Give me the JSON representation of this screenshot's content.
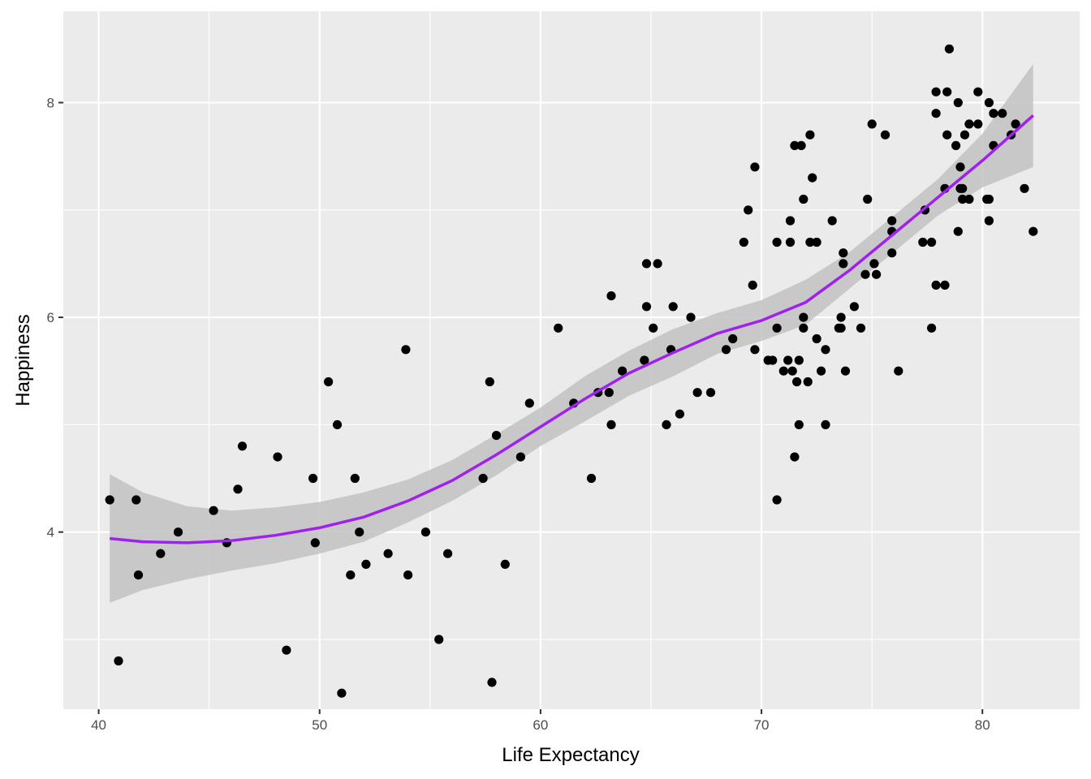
{
  "chart_data": {
    "type": "scatter",
    "title": "",
    "xlabel": "Life Expectancy",
    "ylabel": "Happiness",
    "xlim": [
      38.4,
      84.4
    ],
    "ylim": [
      2.35,
      8.85
    ],
    "x_ticks": [
      40,
      50,
      60,
      70,
      80
    ],
    "y_ticks": [
      4,
      6,
      8
    ],
    "grid": true,
    "legend": "none",
    "colors": {
      "panel_background": "#ebebeb",
      "grid": "#ffffff",
      "points": "#000000",
      "smooth_line": "#a020f0",
      "confidence_band": "#c2c2c2"
    },
    "points": [
      [
        40.5,
        4.3
      ],
      [
        40.9,
        2.8
      ],
      [
        41.7,
        4.3
      ],
      [
        41.8,
        3.6
      ],
      [
        42.8,
        3.8
      ],
      [
        43.6,
        4.0
      ],
      [
        45.2,
        4.2
      ],
      [
        45.8,
        3.9
      ],
      [
        46.3,
        4.4
      ],
      [
        46.5,
        4.8
      ],
      [
        48.1,
        4.7
      ],
      [
        48.5,
        2.9
      ],
      [
        49.7,
        4.5
      ],
      [
        49.8,
        3.9
      ],
      [
        50.4,
        5.4
      ],
      [
        50.8,
        5.0
      ],
      [
        51.0,
        2.5
      ],
      [
        51.4,
        3.6
      ],
      [
        51.6,
        4.5
      ],
      [
        51.8,
        4.0
      ],
      [
        52.1,
        3.7
      ],
      [
        53.1,
        3.8
      ],
      [
        53.9,
        5.7
      ],
      [
        54.0,
        3.6
      ],
      [
        54.8,
        4.0
      ],
      [
        55.4,
        3.0
      ],
      [
        55.8,
        3.8
      ],
      [
        57.4,
        4.5
      ],
      [
        57.7,
        5.4
      ],
      [
        57.8,
        2.6
      ],
      [
        58.0,
        4.9
      ],
      [
        58.4,
        3.7
      ],
      [
        59.1,
        4.7
      ],
      [
        59.5,
        5.2
      ],
      [
        60.8,
        5.9
      ],
      [
        61.5,
        5.2
      ],
      [
        62.3,
        4.5
      ],
      [
        62.6,
        5.3
      ],
      [
        63.1,
        5.3
      ],
      [
        63.2,
        5.0
      ],
      [
        63.2,
        6.2
      ],
      [
        63.7,
        5.5
      ],
      [
        64.7,
        5.6
      ],
      [
        64.8,
        6.1
      ],
      [
        64.8,
        6.5
      ],
      [
        65.1,
        5.9
      ],
      [
        65.3,
        6.5
      ],
      [
        65.7,
        5.0
      ],
      [
        65.9,
        5.7
      ],
      [
        66.0,
        6.1
      ],
      [
        66.3,
        5.1
      ],
      [
        66.8,
        6.0
      ],
      [
        67.1,
        5.3
      ],
      [
        67.7,
        5.3
      ],
      [
        68.4,
        5.7
      ],
      [
        68.7,
        5.8
      ],
      [
        69.2,
        6.7
      ],
      [
        69.4,
        7.0
      ],
      [
        69.6,
        6.3
      ],
      [
        69.7,
        5.7
      ],
      [
        69.7,
        7.4
      ],
      [
        70.3,
        5.6
      ],
      [
        70.5,
        5.6
      ],
      [
        70.7,
        4.3
      ],
      [
        70.7,
        5.9
      ],
      [
        70.7,
        6.7
      ],
      [
        71.0,
        5.5
      ],
      [
        71.2,
        5.6
      ],
      [
        71.3,
        6.7
      ],
      [
        71.3,
        6.9
      ],
      [
        71.4,
        5.5
      ],
      [
        71.5,
        4.7
      ],
      [
        71.5,
        7.6
      ],
      [
        71.6,
        5.4
      ],
      [
        71.7,
        5.0
      ],
      [
        71.7,
        5.6
      ],
      [
        71.8,
        7.6
      ],
      [
        71.9,
        5.9
      ],
      [
        71.9,
        6.0
      ],
      [
        71.9,
        7.1
      ],
      [
        72.1,
        5.4
      ],
      [
        72.2,
        6.7
      ],
      [
        72.2,
        7.7
      ],
      [
        72.3,
        7.3
      ],
      [
        72.5,
        5.8
      ],
      [
        72.5,
        6.7
      ],
      [
        72.7,
        5.5
      ],
      [
        72.9,
        5.0
      ],
      [
        72.9,
        5.7
      ],
      [
        73.2,
        6.9
      ],
      [
        73.5,
        5.9
      ],
      [
        73.6,
        5.9
      ],
      [
        73.6,
        6.0
      ],
      [
        73.7,
        6.5
      ],
      [
        73.7,
        6.6
      ],
      [
        73.8,
        5.5
      ],
      [
        74.2,
        6.1
      ],
      [
        74.5,
        5.9
      ],
      [
        74.7,
        6.4
      ],
      [
        74.8,
        7.1
      ],
      [
        75.0,
        7.8
      ],
      [
        75.1,
        6.5
      ],
      [
        75.2,
        6.4
      ],
      [
        75.6,
        7.7
      ],
      [
        75.9,
        6.6
      ],
      [
        75.9,
        6.8
      ],
      [
        75.9,
        6.9
      ],
      [
        76.2,
        5.5
      ],
      [
        77.3,
        6.7
      ],
      [
        77.4,
        7.0
      ],
      [
        77.7,
        5.9
      ],
      [
        77.7,
        6.7
      ],
      [
        77.9,
        6.3
      ],
      [
        77.9,
        7.9
      ],
      [
        77.9,
        8.1
      ],
      [
        78.3,
        6.3
      ],
      [
        78.3,
        7.2
      ],
      [
        78.4,
        7.7
      ],
      [
        78.4,
        8.1
      ],
      [
        78.5,
        8.5
      ],
      [
        78.8,
        7.6
      ],
      [
        78.9,
        6.8
      ],
      [
        78.9,
        8.0
      ],
      [
        79.0,
        7.2
      ],
      [
        79.0,
        7.4
      ],
      [
        79.1,
        7.1
      ],
      [
        79.1,
        7.2
      ],
      [
        79.2,
        7.7
      ],
      [
        79.4,
        7.1
      ],
      [
        79.4,
        7.8
      ],
      [
        79.8,
        7.8
      ],
      [
        79.8,
        8.1
      ],
      [
        80.2,
        7.1
      ],
      [
        80.3,
        6.9
      ],
      [
        80.3,
        7.1
      ],
      [
        80.3,
        8.0
      ],
      [
        80.5,
        7.6
      ],
      [
        80.5,
        7.9
      ],
      [
        80.9,
        7.9
      ],
      [
        81.3,
        7.7
      ],
      [
        81.5,
        7.8
      ],
      [
        81.9,
        7.2
      ],
      [
        82.3,
        6.8
      ]
    ],
    "smooth": {
      "x": [
        40.5,
        42,
        44,
        46,
        48,
        50,
        52,
        54,
        56,
        58,
        60,
        62,
        64,
        66,
        68,
        70,
        72,
        74,
        76,
        78,
        80,
        82.3
      ],
      "y": [
        3.94,
        3.91,
        3.9,
        3.92,
        3.97,
        4.04,
        4.14,
        4.29,
        4.48,
        4.72,
        4.98,
        5.24,
        5.48,
        5.67,
        5.85,
        5.97,
        6.14,
        6.44,
        6.78,
        7.12,
        7.46,
        7.88
      ],
      "lower": [
        3.34,
        3.46,
        3.56,
        3.64,
        3.71,
        3.8,
        3.91,
        4.09,
        4.29,
        4.53,
        4.8,
        5.03,
        5.27,
        5.45,
        5.66,
        5.78,
        5.93,
        6.27,
        6.61,
        6.95,
        7.21,
        7.4
      ],
      "upper": [
        4.54,
        4.37,
        4.24,
        4.2,
        4.23,
        4.28,
        4.37,
        4.49,
        4.67,
        4.91,
        5.16,
        5.45,
        5.69,
        5.89,
        6.04,
        6.16,
        6.35,
        6.61,
        6.95,
        7.29,
        7.71,
        8.36
      ]
    }
  }
}
